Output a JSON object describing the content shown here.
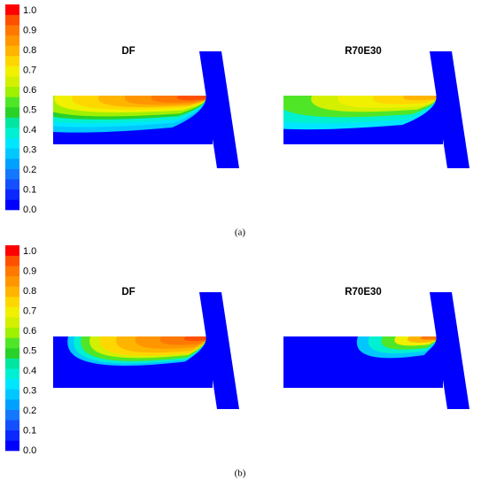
{
  "panels": [
    {
      "colorbar_labels": [
        "1.0",
        "0.9",
        "0.8",
        "0.7",
        "0.6",
        "0.5",
        "0.4",
        "0.3",
        "0.2",
        "0.1",
        "0.0"
      ],
      "plots": [
        {
          "title": "DF"
        },
        {
          "title": "R70E30"
        }
      ],
      "caption": "(a)"
    },
    {
      "colorbar_labels": [
        "1.0",
        "0.9",
        "0.8",
        "0.7",
        "0.6",
        "0.5",
        "0.4",
        "0.3",
        "0.2",
        "0.1",
        "0.0"
      ],
      "plots": [
        {
          "title": "DF"
        },
        {
          "title": "R70E30"
        }
      ],
      "caption": "(b)"
    }
  ]
}
